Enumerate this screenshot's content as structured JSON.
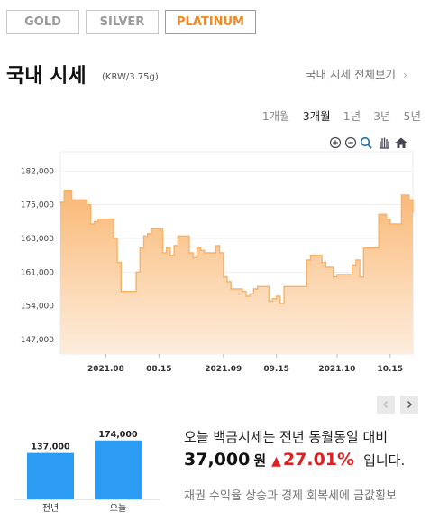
{
  "tabs": [
    {
      "label": "GOLD",
      "selected": false
    },
    {
      "label": "SILVER",
      "selected": false
    },
    {
      "label": "PLATINUM",
      "selected": true
    }
  ],
  "title": "국내 시세",
  "unit": "(KRW/3.75g)",
  "more_link": "국내 시세 전체보기",
  "periods": [
    "1개월",
    "3개월",
    "1년",
    "3년",
    "5년"
  ],
  "selected_period": "3개월",
  "tools": [
    "zoom-in-icon",
    "zoom-out-icon",
    "magnify-icon",
    "hand-icon",
    "home-icon"
  ],
  "colors": {
    "accent": "#f08a22",
    "line": "#f7b26a",
    "bar": "#2b9cf2",
    "up": "#e02020"
  },
  "chart_data": [
    {
      "type": "area",
      "title": "",
      "xlabel": "",
      "ylabel": "",
      "ylim": [
        144000,
        186000
      ],
      "yticks": [
        147000,
        154000,
        161000,
        168000,
        175000,
        182000
      ],
      "ytick_labels": [
        "147,000",
        "154,000",
        "161,000",
        "168,000",
        "175,000",
        "182,000"
      ],
      "xtick_labels": [
        "2021.08",
        "08.15",
        "2021.09",
        "09.15",
        "2021.10",
        "10.15"
      ],
      "xticks": [
        "2021-08-01",
        "2021-08-15",
        "2021-09-01",
        "2021-09-15",
        "2021-10-01",
        "2021-10-15"
      ],
      "x_start": "2021-07-20",
      "x_end": "2021-10-21",
      "grid": true,
      "series": [
        {
          "x": [
            "2021-07-20",
            "2021-07-21",
            "2021-07-22",
            "2021-07-23",
            "2021-07-26",
            "2021-07-27",
            "2021-07-28",
            "2021-07-29",
            "2021-07-30",
            "2021-08-02",
            "2021-08-03",
            "2021-08-04",
            "2021-08-05",
            "2021-08-06",
            "2021-08-09",
            "2021-08-10",
            "2021-08-11",
            "2021-08-12",
            "2021-08-13",
            "2021-08-16",
            "2021-08-17",
            "2021-08-18",
            "2021-08-19",
            "2021-08-20",
            "2021-08-23",
            "2021-08-24",
            "2021-08-25",
            "2021-08-26",
            "2021-08-27",
            "2021-08-30",
            "2021-08-31",
            "2021-09-01",
            "2021-09-02",
            "2021-09-03",
            "2021-09-06",
            "2021-09-07",
            "2021-09-08",
            "2021-09-09",
            "2021-09-10",
            "2021-09-13",
            "2021-09-14",
            "2021-09-15",
            "2021-09-16",
            "2021-09-17",
            "2021-09-23",
            "2021-09-24",
            "2021-09-27",
            "2021-09-28",
            "2021-09-29",
            "2021-09-30",
            "2021-10-01",
            "2021-10-05",
            "2021-10-06",
            "2021-10-07",
            "2021-10-08",
            "2021-10-12",
            "2021-10-13",
            "2021-10-14",
            "2021-10-15",
            "2021-10-18",
            "2021-10-19",
            "2021-10-20",
            "2021-10-21"
          ],
          "values": [
            175500,
            178000,
            178000,
            176000,
            176000,
            175000,
            171000,
            171500,
            172000,
            172000,
            168000,
            163000,
            157000,
            157000,
            161000,
            166000,
            168500,
            169000,
            170000,
            165000,
            166000,
            164500,
            166500,
            168500,
            165000,
            164000,
            166000,
            165500,
            165000,
            166500,
            165000,
            160000,
            159000,
            157500,
            157000,
            156000,
            156500,
            157500,
            158000,
            155000,
            155500,
            156000,
            154500,
            158000,
            163500,
            164500,
            163000,
            162000,
            162000,
            160000,
            160500,
            162500,
            163500,
            160000,
            166000,
            173000,
            173000,
            172000,
            171000,
            177000,
            177000,
            176000,
            173500
          ]
        }
      ]
    },
    {
      "type": "bar",
      "categories": [
        "전년",
        "오늘"
      ],
      "values": [
        137000,
        174000
      ],
      "value_labels": [
        "137,000",
        "174,000"
      ],
      "ylim": [
        0,
        200000
      ]
    }
  ],
  "summary": {
    "message": "오늘 백금시세는 전년 동월동일 대비",
    "difference": "37,000",
    "won": "원",
    "arrow": "▲",
    "percent": "27.01%",
    "suffix": "입니다.",
    "news": "채권 수익율 상승과 경제 회복세에 금값횡보"
  }
}
